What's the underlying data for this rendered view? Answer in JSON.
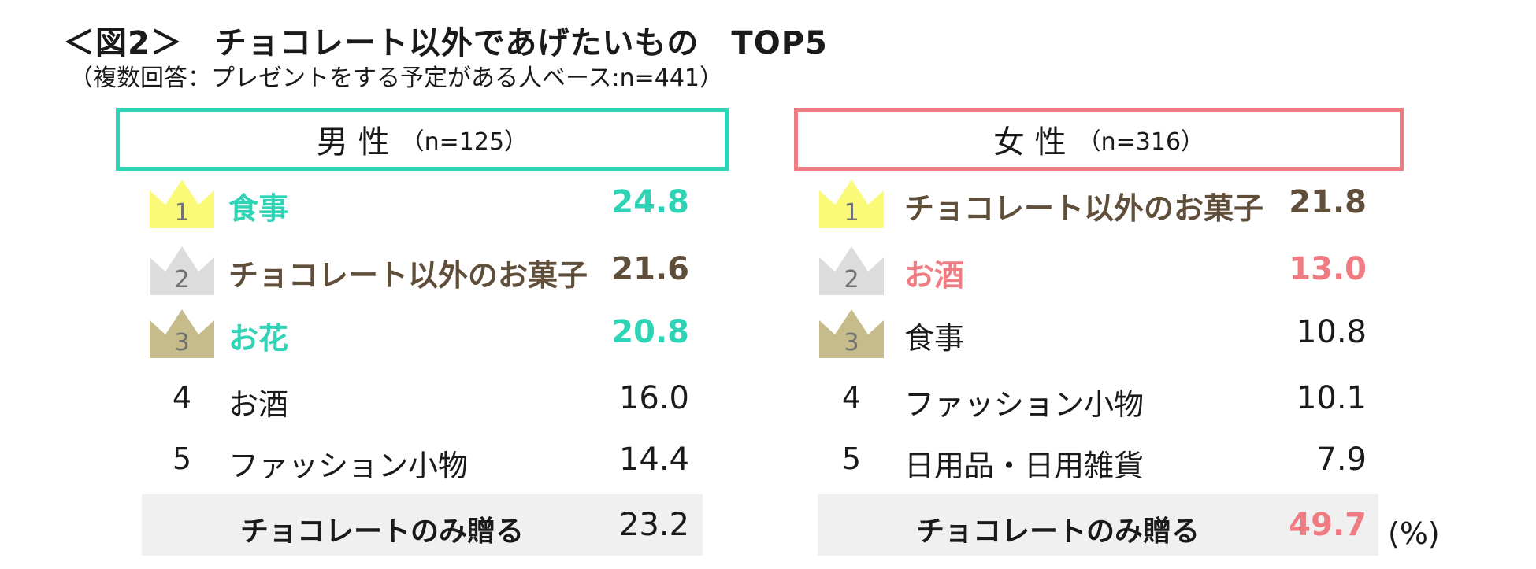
{
  "title": "＜図2＞　チョコレート以外であげたいもの　TOP5",
  "subtitle": "（複数回答：プレゼントをする予定がある人ベース:n=441）",
  "unit_label": "(%)",
  "colors": {
    "male_accent": "#2fd3b5",
    "female_accent": "#ef7c82",
    "brown": "#5f4e3a",
    "crown_gold": "#fafa78",
    "crown_silver": "#dcdcdc",
    "crown_bronze": "#c6bb8b"
  },
  "chart_data": [
    {
      "type": "table",
      "panel": "男性",
      "header": "男 性",
      "n_label": "（n=125）",
      "columns": [
        "rank",
        "item",
        "percent"
      ],
      "rows": [
        {
          "rank": "1",
          "item": "食事",
          "value": "24.8",
          "style": "accent"
        },
        {
          "rank": "2",
          "item": "チョコレート以外のお菓子",
          "value": "21.6",
          "style": "brown"
        },
        {
          "rank": "3",
          "item": "お花",
          "value": "20.8",
          "style": "accent"
        },
        {
          "rank": "4",
          "item": "お酒",
          "value": "16.0",
          "style": "plain"
        },
        {
          "rank": "5",
          "item": "ファッション小物",
          "value": "14.4",
          "style": "plain"
        }
      ],
      "summary": {
        "label": "チョコレートのみ贈る",
        "value": "23.2",
        "style": "plain"
      }
    },
    {
      "type": "table",
      "panel": "女性",
      "header": "女 性",
      "n_label": "（n=316）",
      "columns": [
        "rank",
        "item",
        "percent"
      ],
      "rows": [
        {
          "rank": "1",
          "item": "チョコレート以外のお菓子",
          "value": "21.8",
          "style": "brown"
        },
        {
          "rank": "2",
          "item": "お酒",
          "value": "13.0",
          "style": "accent"
        },
        {
          "rank": "3",
          "item": "食事",
          "value": "10.8",
          "style": "plain"
        },
        {
          "rank": "4",
          "item": "ファッション小物",
          "value": "10.1",
          "style": "plain"
        },
        {
          "rank": "5",
          "item": "日用品・日用雑貨",
          "value": "7.9",
          "style": "plain"
        }
      ],
      "summary": {
        "label": "チョコレートのみ贈る",
        "value": "49.7",
        "style": "accent"
      }
    }
  ]
}
